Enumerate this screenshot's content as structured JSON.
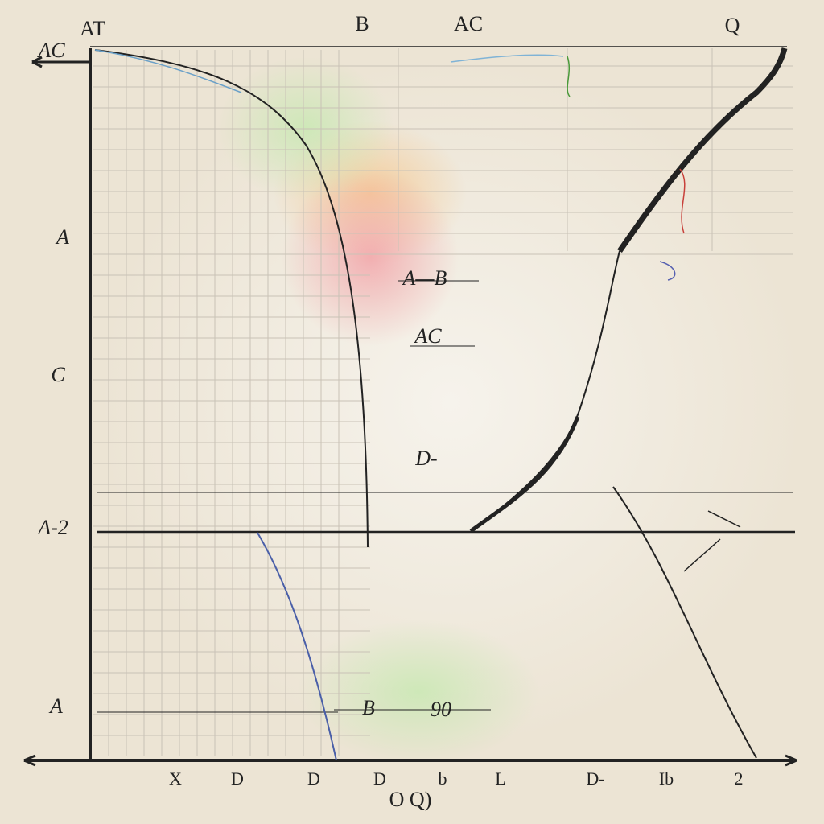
{
  "top_labels": [
    "AT",
    "B",
    "AC",
    "Q"
  ],
  "left_labels": [
    "AC",
    "A",
    "C",
    "A-2",
    "A"
  ],
  "annotations": [
    "A—B",
    "AC",
    "D-",
    "B",
    "90"
  ],
  "bottom_labels": [
    "X",
    "D",
    "D",
    "D",
    "b",
    "L",
    "D-",
    "Ib",
    "2"
  ],
  "caption": "O Q)"
}
